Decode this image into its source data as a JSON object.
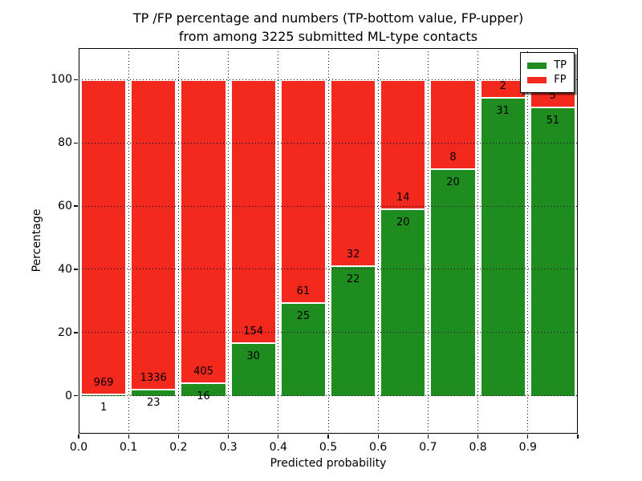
{
  "figure": {
    "title_line1": "TP /FP percentage and numbers (TP-bottom value, FP-upper)",
    "title_line2": "from among 3225 submitted ML-type contacts"
  },
  "chart_data": {
    "type": "bar",
    "stacked": true,
    "orientation": "vertical",
    "title": "TP /FP percentage and numbers (TP-bottom value, FP-upper)\nfrom among 3225 submitted ML-type contacts",
    "xlabel": "Predicted probability",
    "ylabel": "Percentage",
    "total_contacts": 3225,
    "bins": [
      "0.0-0.1",
      "0.1-0.2",
      "0.2-0.3",
      "0.3-0.4",
      "0.4-0.5",
      "0.5-0.6",
      "0.6-0.7",
      "0.7-0.8",
      "0.8-0.9",
      "0.9-1.0"
    ],
    "x_tick_labels": [
      "0.0",
      "0.1",
      "0.2",
      "0.3",
      "0.4",
      "0.5",
      "0.6",
      "0.7",
      "0.8",
      "0.9"
    ],
    "y_ticks": [
      0,
      20,
      40,
      60,
      80,
      100
    ],
    "xlim": [
      0,
      1
    ],
    "ylim": [
      -12,
      110
    ],
    "grid": {
      "style": "dotted",
      "color": "#000000",
      "both_axes": true,
      "drawn_over_bars": true
    },
    "legend": {
      "position": "upper-right",
      "entries": [
        "TP",
        "FP"
      ]
    },
    "series": [
      {
        "name": "TP",
        "color": "#1e8c1e",
        "counts": [
          1,
          23,
          16,
          30,
          25,
          22,
          20,
          20,
          31,
          51
        ],
        "percent_of_bin": [
          0.1,
          1.7,
          3.8,
          16.3,
          29.1,
          40.7,
          58.8,
          71.4,
          93.9,
          91.1
        ]
      },
      {
        "name": "FP",
        "color": "#f4291e",
        "counts": [
          969,
          1336,
          405,
          154,
          61,
          32,
          14,
          8,
          2,
          5
        ],
        "percent_of_bin": [
          99.9,
          98.3,
          96.2,
          83.7,
          70.9,
          59.3,
          41.2,
          28.6,
          6.1,
          8.9
        ]
      }
    ],
    "note": "Each bar normalized to 100% of bin total; labels show raw counts (TP bottom value, FP upper)"
  }
}
